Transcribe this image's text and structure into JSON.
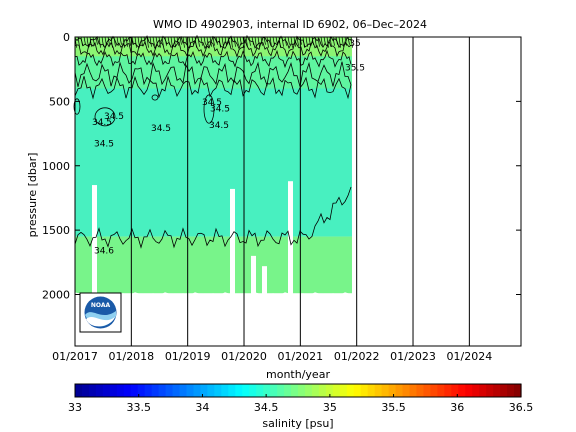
{
  "chart_data": {
    "type": "heatmap",
    "title": "WMO ID 4902903, internal ID 6902, 06–Dec–2024",
    "xlabel": "month/year",
    "ylabel": "pressure [dbar]",
    "x_ticks": [
      "01/2017",
      "01/2018",
      "01/2019",
      "01/2020",
      "01/2021",
      "01/2022",
      "01/2023",
      "01/2024"
    ],
    "y_ticks": [
      0,
      500,
      1000,
      1500,
      2000
    ],
    "xlim": [
      "2017-01",
      "2024-12"
    ],
    "ylim": [
      2400,
      0
    ],
    "grid": "vertical",
    "data_end": "2021-12",
    "colorbar": {
      "label": "salinity [psu]",
      "ticks": [
        33,
        33.5,
        34,
        34.5,
        35,
        35.5,
        36,
        36.5
      ],
      "range": [
        33,
        36.5
      ]
    },
    "bands": [
      {
        "salinity_range": [
          35.0,
          35.5
        ],
        "color": "#8cf573",
        "from_dbar": 0,
        "to_dbar": 220
      },
      {
        "salinity_range": [
          34.5,
          35.0
        ],
        "color": "#5ff5a0",
        "from_dbar": 150,
        "to_dbar": 400
      },
      {
        "salinity_range": [
          34.5,
          34.6
        ],
        "color": "#48f0c0",
        "from_dbar": 400,
        "to_dbar": 1550
      },
      {
        "salinity_range": [
          34.6,
          35.0
        ],
        "color": "#78f48a",
        "from_dbar": 1550,
        "to_dbar": 1990
      }
    ],
    "contour_labels": [
      "34.5",
      "34.5",
      "34.5",
      "34.5",
      "34.5",
      "34.5",
      "34.5",
      "34.6",
      "35",
      "35.5"
    ],
    "logo": "noaa-logo"
  }
}
